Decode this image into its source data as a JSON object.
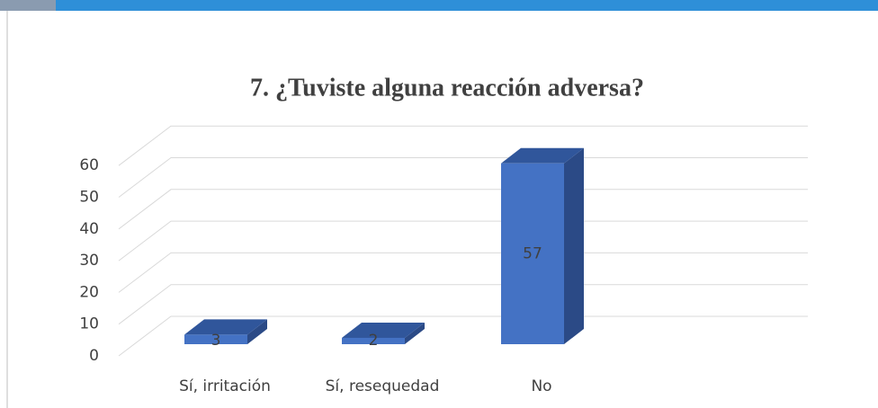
{
  "chart_data": {
    "type": "bar",
    "title": "7. ¿Tuviste alguna reacción adversa?",
    "categories": [
      "Sí, irritación",
      "Sí, resequedad",
      "No"
    ],
    "values": [
      3,
      2,
      57
    ],
    "color": "#4472c4",
    "ylim": [
      0,
      60
    ],
    "yticks": [
      0,
      10,
      20,
      30,
      40,
      50,
      60
    ],
    "grid": true
  }
}
